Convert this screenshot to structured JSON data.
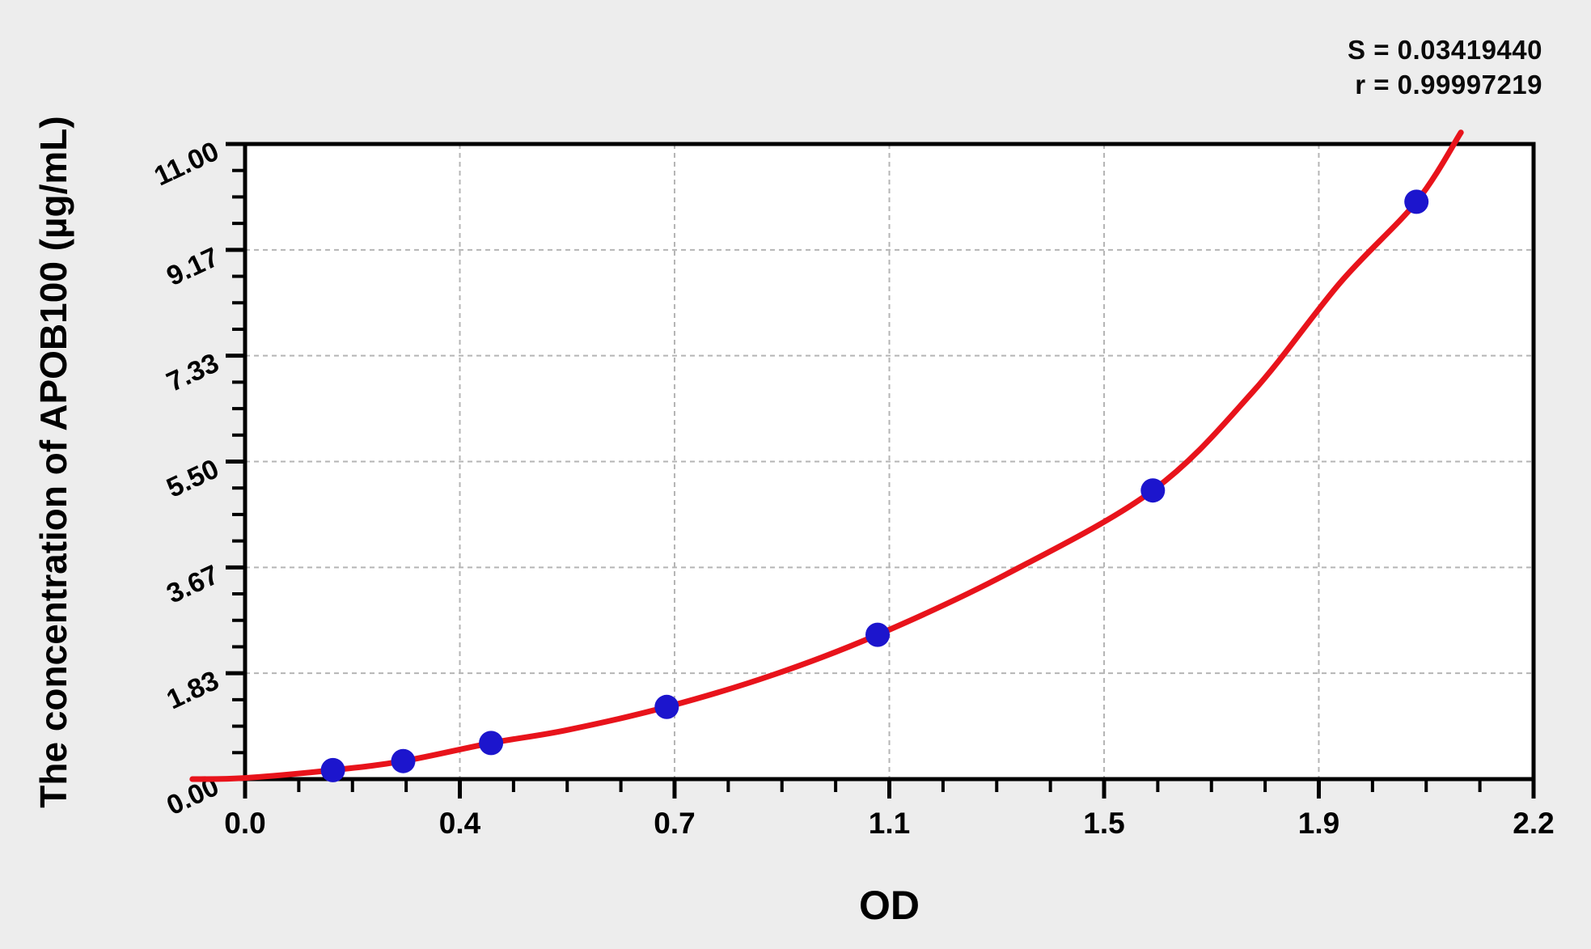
{
  "stats": {
    "s_line": "S = 0.03419440",
    "r_line": "r = 0.99997219"
  },
  "axes": {
    "x_title": "OD",
    "y_title": "The concentration of APOB100 (µg/mL)"
  },
  "chart_data": {
    "type": "scatter",
    "title": "",
    "x_axis": {
      "label": "OD",
      "range": [
        0,
        2.2
      ],
      "tick_labels": [
        "0.0",
        "0.4",
        "0.7",
        "1.1",
        "1.5",
        "1.9",
        "2.2"
      ],
      "tick_values": [
        0,
        0.3667,
        0.7333,
        1.1,
        1.4667,
        1.8333,
        2.2
      ],
      "minor_divisions": 4
    },
    "y_axis": {
      "label": "The concentration of APOB100 (µg/mL)",
      "range": [
        0,
        11
      ],
      "tick_labels": [
        "0.00",
        "1.83",
        "3.67",
        "5.50",
        "7.33",
        "9.17",
        "11.00"
      ],
      "tick_values": [
        0,
        1.8333,
        3.6667,
        5.5,
        7.3333,
        9.1667,
        11
      ],
      "minor_divisions": 4
    },
    "grid": {
      "style": "dashed",
      "color": "#b5b5b5"
    },
    "points": [
      [
        0.15,
        0.156
      ],
      [
        0.27,
        0.312
      ],
      [
        0.42,
        0.625
      ],
      [
        0.72,
        1.25
      ],
      [
        1.08,
        2.5
      ],
      [
        1.55,
        5.0
      ],
      [
        2.0,
        10.0
      ]
    ],
    "fit_curve": [
      [
        -0.09,
        0.0
      ],
      [
        0.0,
        0.02
      ],
      [
        0.15,
        0.156
      ],
      [
        0.27,
        0.312
      ],
      [
        0.42,
        0.625
      ],
      [
        0.55,
        0.85
      ],
      [
        0.72,
        1.25
      ],
      [
        0.9,
        1.8
      ],
      [
        1.08,
        2.5
      ],
      [
        1.3,
        3.55
      ],
      [
        1.55,
        5.0
      ],
      [
        1.72,
        6.7
      ],
      [
        1.87,
        8.6
      ],
      [
        2.0,
        10.0
      ],
      [
        2.076,
        11.2
      ]
    ],
    "annotations": {
      "S": "0.03419440",
      "r": "0.99997219"
    },
    "colors": {
      "curve": "#e8131b",
      "points": "#1c15cd",
      "frame": "#000000",
      "grid": "#b5b5b5",
      "background": "#ededed",
      "plot_background": "#ffffff",
      "text": "#000000"
    },
    "legend": "none"
  }
}
